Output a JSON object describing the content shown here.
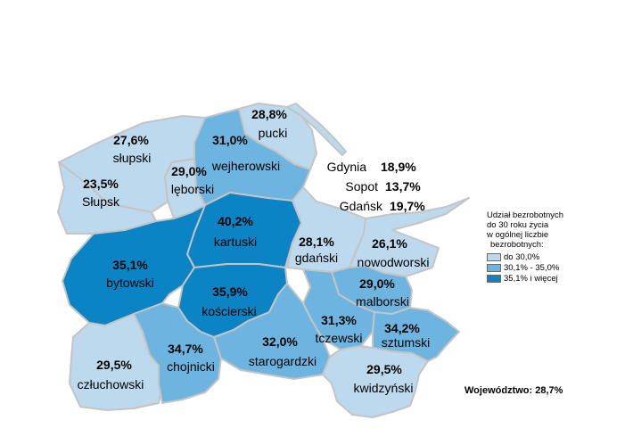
{
  "colors": {
    "light": "#bcd9ee",
    "medium": "#6db5e0",
    "dark": "#0b84c5",
    "border": "#c4c4c4"
  },
  "legend": {
    "title_lines": [
      "Udział bezrobotnych",
      "do 30 roku życia",
      "w ogólnej liczbie",
      "bezrobotnych:"
    ],
    "items": [
      {
        "label": "do 30,0%",
        "color": "#bcd9ee"
      },
      {
        "label": "30,1% - 35,0%",
        "color": "#6db5e0"
      },
      {
        "label": "35,1% i więcej",
        "color": "#0b84c5"
      }
    ]
  },
  "counties": {
    "pucki": {
      "value": "28,8%",
      "name": "pucki"
    },
    "slupski": {
      "value": "27,6%",
      "name": "słupski"
    },
    "wejherowski": {
      "value": "31,0%",
      "name": "wejherowski"
    },
    "lęborski": {
      "value": "29,0%",
      "name": "lęborski"
    },
    "slupsk": {
      "value": "23,5%",
      "name": "Słupsk"
    },
    "kartuski": {
      "value": "40,2%",
      "name": "kartuski"
    },
    "gdanski": {
      "value": "28,1%",
      "name": "gdański"
    },
    "nowodworski": {
      "value": "26,1%",
      "name": "nowodworski"
    },
    "bytowski": {
      "value": "35,1%",
      "name": "bytowski"
    },
    "koscierski": {
      "value": "35,9%",
      "name": "kościerski"
    },
    "malborski": {
      "value": "29,0%",
      "name": "malborski"
    },
    "tczewski": {
      "value": "31,3%",
      "name": "tczewski"
    },
    "sztumski": {
      "value": "34,2%",
      "name": "sztumski"
    },
    "czluchowski": {
      "value": "29,5%",
      "name": "człuchowski"
    },
    "chojnicki": {
      "value": "34,7%",
      "name": "chojnicki"
    },
    "starogardzki": {
      "value": "32,0%",
      "name": "starogardzki"
    },
    "kwidzynski": {
      "value": "29,5%",
      "name": "kwidzyński"
    }
  },
  "cities": [
    {
      "name": "Gdynia",
      "value": "18,9%"
    },
    {
      "name": "Sopot",
      "value": "13,7%"
    },
    {
      "name": "Gdańsk",
      "value": "19,7%"
    }
  ],
  "voivodeship": "Województwo: 28,7%"
}
